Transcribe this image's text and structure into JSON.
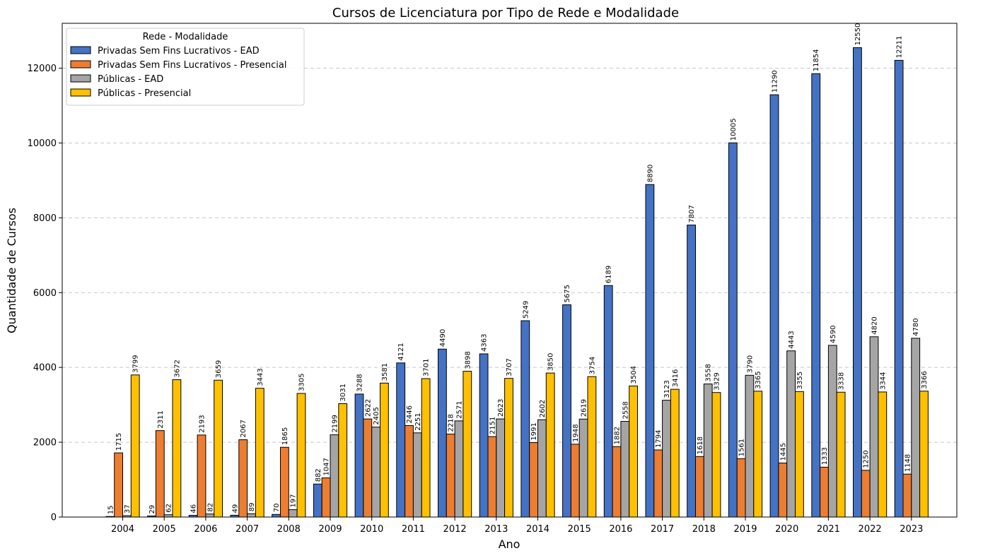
{
  "chart_data": {
    "type": "bar",
    "title": "Cursos de Licenciatura por Tipo de Rede e Modalidade",
    "xlabel": "Ano",
    "ylabel": "Quantidade de Cursos",
    "ylim": [
      0,
      13200
    ],
    "yticks": [
      0,
      2000,
      4000,
      6000,
      8000,
      10000,
      12000
    ],
    "grid": "y-dashed",
    "legend": {
      "title": "Rede - Modalidade",
      "placement": "top-left"
    },
    "categories": [
      "2004",
      "2005",
      "2006",
      "2007",
      "2008",
      "2009",
      "2010",
      "2011",
      "2012",
      "2013",
      "2014",
      "2015",
      "2016",
      "2017",
      "2018",
      "2019",
      "2020",
      "2021",
      "2022",
      "2023"
    ],
    "series": [
      {
        "name": "Privadas Sem Fins Lucrativos - EAD",
        "color": "#4472c4",
        "values": [
          15,
          29,
          46,
          49,
          70,
          882,
          3288,
          4121,
          4490,
          4363,
          5249,
          5675,
          6189,
          8890,
          7807,
          10005,
          11290,
          11854,
          12550,
          12211
        ]
      },
      {
        "name": "Privadas Sem Fins Lucrativos - Presencial",
        "color": "#ed7d31",
        "values": [
          1715,
          2311,
          2193,
          2067,
          1865,
          1047,
          2622,
          2446,
          2218,
          2151,
          1991,
          1948,
          1882,
          1794,
          1618,
          1561,
          1445,
          1333,
          1250,
          1148
        ]
      },
      {
        "name": "Públicas - EAD",
        "color": "#a5a5a5",
        "values": [
          37,
          62,
          82,
          89,
          197,
          2199,
          2405,
          2251,
          2571,
          2623,
          2602,
          2619,
          2558,
          3123,
          3558,
          3790,
          4443,
          4590,
          4820,
          4780
        ]
      },
      {
        "name": "Públicas - Presencial",
        "color": "#ffc000",
        "values": [
          3799,
          3672,
          3659,
          3443,
          3305,
          3031,
          3581,
          3701,
          3898,
          3707,
          3850,
          3754,
          3504,
          3416,
          3329,
          3365,
          3355,
          3338,
          3344,
          3366
        ]
      }
    ]
  }
}
